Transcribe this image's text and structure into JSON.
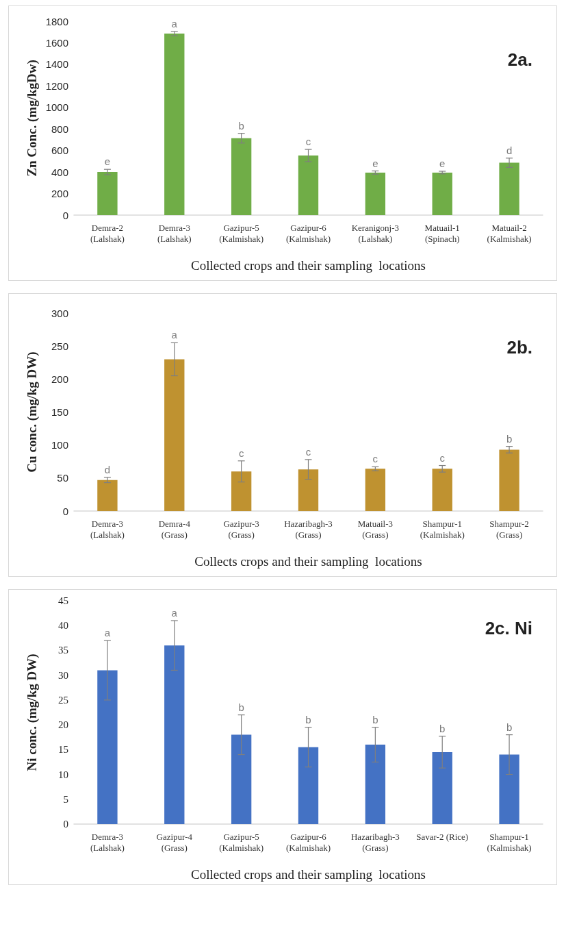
{
  "chart_data": [
    {
      "type": "bar",
      "title": "2a.",
      "xlabel": "Collected crops and their sampling  locations",
      "ylabel": "Zn Conc. (mg/kgDw)",
      "categories": [
        "Demra-2\n(Lalshak)",
        "Demra-3\n(Lalshak)",
        "Gazipur-5\n(Kalmishak)",
        "Gazipur-6\n(Kalmishak)",
        "Keranigonj-3\n(Lalshak)",
        "Matuail-1\n(Spinach)",
        "Matuail-2\n(Kalmishak)"
      ],
      "series": [
        {
          "color": "#70ad47",
          "values": [
            400,
            1685,
            714,
            553,
            395,
            395,
            486
          ],
          "errors": [
            25,
            20,
            45,
            57,
            15,
            12,
            43
          ]
        }
      ],
      "ylim": [
        0,
        1800
      ],
      "yticks": [
        0,
        200,
        400,
        600,
        800,
        1000,
        1200,
        1400,
        1600,
        1800
      ],
      "grid": false,
      "annotations": [
        {
          "text": "e",
          "x": "Demra-2\n(Lalshak)",
          "y": 425
        },
        {
          "text": "a",
          "x": "Demra-3\n(Lalshak)",
          "y": 1705
        },
        {
          "text": "b",
          "x": "Gazipur-5\n(Kalmishak)",
          "y": 759
        },
        {
          "text": "c",
          "x": "Gazipur-6\n(Kalmishak)",
          "y": 610
        },
        {
          "text": "e",
          "x": "Keranigonj-3\n(Lalshak)",
          "y": 410
        },
        {
          "text": "e",
          "x": "Matuail-1\n(Spinach)",
          "y": 407
        },
        {
          "text": "d",
          "x": "Matuail-2\n(Kalmishak)",
          "y": 529
        }
      ]
    },
    {
      "type": "bar",
      "title": "2b.",
      "xlabel": "Collects crops and their sampling  locations",
      "ylabel": "Cu conc. (mg/kg DW)",
      "categories": [
        "Demra-3\n(Lalshak)",
        "Demra-4\n(Grass)",
        "Gazipur-3\n(Grass)",
        "Hazaribagh-3\n(Grass)",
        "Matuail-3\n(Grass)",
        "Shampur-1\n(Kalmishak)",
        "Shampur-2\n(Grass)"
      ],
      "series": [
        {
          "color": "#bf9230",
          "values": [
            47,
            230,
            60,
            63,
            64,
            64,
            93
          ],
          "errors": [
            4,
            25,
            16,
            15,
            3,
            5,
            5
          ]
        }
      ],
      "ylim": [
        0,
        300
      ],
      "yticks": [
        0,
        50,
        100,
        150,
        200,
        250,
        300
      ],
      "grid": false,
      "annotations": [
        {
          "text": "d",
          "x": "Demra-3\n(Lalshak)",
          "y": 51
        },
        {
          "text": "a",
          "x": "Demra-4\n(Grass)",
          "y": 255
        },
        {
          "text": "c",
          "x": "Gazipur-3\n(Grass)",
          "y": 76
        },
        {
          "text": "c",
          "x": "Hazaribagh-3\n(Grass)",
          "y": 78
        },
        {
          "text": "c",
          "x": "Matuail-3\n(Grass)",
          "y": 67
        },
        {
          "text": "c",
          "x": "Shampur-1\n(Kalmishak)",
          "y": 69
        },
        {
          "text": "b",
          "x": "Shampur-2\n(Grass)",
          "y": 98
        }
      ]
    },
    {
      "type": "bar",
      "title": "2c. Ni",
      "xlabel": "Collected crops and their sampling  locations",
      "ylabel": "Ni conc. (mg/kg DW)",
      "categories": [
        "Demra-3\n(Lalshak)",
        "Gazipur-4\n(Grass)",
        "Gazipur-5\n(Kalmishak)",
        "Gazipur-6\n(Kalmishak)",
        "Hazaribagh-3\n(Grass)",
        "Savar-2 (Rice)",
        "Shampur-1\n(Kalmishak)"
      ],
      "series": [
        {
          "color": "#4472c4",
          "values": [
            31,
            36,
            18,
            15.5,
            16,
            14.5,
            14
          ],
          "errors": [
            6,
            5,
            4,
            4,
            3.5,
            3.2,
            4
          ]
        }
      ],
      "ylim": [
        0,
        45
      ],
      "yticks": [
        0,
        5,
        10,
        15,
        20,
        25,
        30,
        35,
        40,
        45
      ],
      "grid": false,
      "annotations": [
        {
          "text": "a",
          "x": "Demra-3\n(Lalshak)",
          "y": 37
        },
        {
          "text": "a",
          "x": "Gazipur-4\n(Grass)",
          "y": 41
        },
        {
          "text": "b",
          "x": "Gazipur-5\n(Kalmishak)",
          "y": 22
        },
        {
          "text": "b",
          "x": "Gazipur-6\n(Kalmishak)",
          "y": 19.5
        },
        {
          "text": "b",
          "x": "Hazaribagh-3\n(Grass)",
          "y": 19.5
        },
        {
          "text": "b",
          "x": "Savar-2 (Rice)",
          "y": 17.7
        },
        {
          "text": "b",
          "x": "Shampur-1\n(Kalmishak)",
          "y": 18
        }
      ]
    }
  ]
}
